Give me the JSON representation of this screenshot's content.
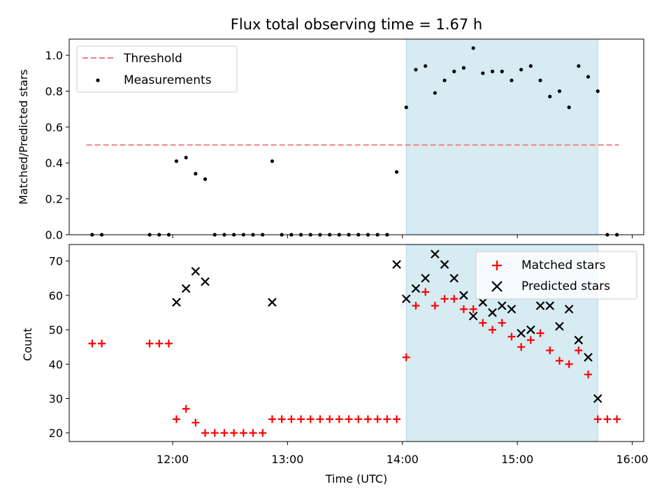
{
  "chart_data": [
    {
      "type": "scatter",
      "title": "Flux total observing time = 1.67 h",
      "ylabel": "Matched/Predicted stars",
      "xlabel": "",
      "ylim": [
        0,
        1.09
      ],
      "yticks": [
        "0.0",
        "0.2",
        "0.4",
        "0.6",
        "0.8",
        "1.0"
      ],
      "shaded_span_utc": [
        "14:02",
        "15:42"
      ],
      "shade_color": "#add8e6",
      "threshold": {
        "name": "Threshold",
        "value": 0.5,
        "color": "#f08080",
        "x_range_utc": [
          "11:15",
          "15:53"
        ]
      },
      "series": [
        {
          "name": "Measurements",
          "color": "#000000",
          "points": [
            [
              "11:18",
              0.0
            ],
            [
              "11:23",
              0.0
            ],
            [
              "11:48",
              0.0
            ],
            [
              "11:53",
              0.0
            ],
            [
              "11:58",
              0.0
            ],
            [
              "12:02",
              0.41
            ],
            [
              "12:07",
              0.43
            ],
            [
              "12:12",
              0.34
            ],
            [
              "12:17",
              0.31
            ],
            [
              "12:22",
              0.0
            ],
            [
              "12:27",
              0.0
            ],
            [
              "12:32",
              0.0
            ],
            [
              "12:37",
              0.0
            ],
            [
              "12:42",
              0.0
            ],
            [
              "12:47",
              0.0
            ],
            [
              "12:52",
              0.41
            ],
            [
              "12:57",
              0.0
            ],
            [
              "13:02",
              0.0
            ],
            [
              "13:07",
              0.0
            ],
            [
              "13:12",
              0.0
            ],
            [
              "13:17",
              0.0
            ],
            [
              "13:22",
              0.0
            ],
            [
              "13:27",
              0.0
            ],
            [
              "13:32",
              0.0
            ],
            [
              "13:37",
              0.0
            ],
            [
              "13:42",
              0.0
            ],
            [
              "13:47",
              0.0
            ],
            [
              "13:52",
              0.0
            ],
            [
              "13:57",
              0.35
            ],
            [
              "14:02",
              0.71
            ],
            [
              "14:07",
              0.92
            ],
            [
              "14:12",
              0.94
            ],
            [
              "14:17",
              0.79
            ],
            [
              "14:22",
              0.86
            ],
            [
              "14:27",
              0.91
            ],
            [
              "14:32",
              0.93
            ],
            [
              "14:37",
              1.04
            ],
            [
              "14:42",
              0.9
            ],
            [
              "14:47",
              0.91
            ],
            [
              "14:52",
              0.91
            ],
            [
              "14:57",
              0.86
            ],
            [
              "15:02",
              0.92
            ],
            [
              "15:07",
              0.94
            ],
            [
              "15:12",
              0.86
            ],
            [
              "15:17",
              0.77
            ],
            [
              "15:22",
              0.8
            ],
            [
              "15:27",
              0.71
            ],
            [
              "15:32",
              0.94
            ],
            [
              "15:37",
              0.88
            ],
            [
              "15:42",
              0.8
            ],
            [
              "15:47",
              0.0
            ],
            [
              "15:52",
              0.0
            ]
          ]
        }
      ],
      "legend": {
        "position": "upper-left",
        "entries": [
          "Threshold",
          "Measurements"
        ]
      }
    },
    {
      "type": "scatter",
      "title": "",
      "ylabel": "Count",
      "xlabel": "Time (UTC)",
      "ylim": [
        17.5,
        74.8
      ],
      "yticks": [
        "20",
        "30",
        "40",
        "50",
        "60",
        "70"
      ],
      "xlim_utc": [
        "11:06",
        "16:06"
      ],
      "xticks": [
        "12:00",
        "13:00",
        "14:00",
        "15:00",
        "16:00"
      ],
      "shaded_span_utc": [
        "14:02",
        "15:42"
      ],
      "shade_color": "#add8e6",
      "series": [
        {
          "name": "Matched stars",
          "marker": "plus",
          "color": "#ff0000",
          "points": [
            [
              "11:18",
              46
            ],
            [
              "11:23",
              46
            ],
            [
              "11:48",
              46
            ],
            [
              "11:53",
              46
            ],
            [
              "11:58",
              46
            ],
            [
              "12:02",
              24
            ],
            [
              "12:07",
              27
            ],
            [
              "12:12",
              23
            ],
            [
              "12:17",
              20
            ],
            [
              "12:22",
              20
            ],
            [
              "12:27",
              20
            ],
            [
              "12:32",
              20
            ],
            [
              "12:37",
              20
            ],
            [
              "12:42",
              20
            ],
            [
              "12:47",
              20
            ],
            [
              "12:52",
              24
            ],
            [
              "12:57",
              24
            ],
            [
              "13:02",
              24
            ],
            [
              "13:07",
              24
            ],
            [
              "13:12",
              24
            ],
            [
              "13:17",
              24
            ],
            [
              "13:22",
              24
            ],
            [
              "13:27",
              24
            ],
            [
              "13:32",
              24
            ],
            [
              "13:37",
              24
            ],
            [
              "13:42",
              24
            ],
            [
              "13:47",
              24
            ],
            [
              "13:52",
              24
            ],
            [
              "13:57",
              24
            ],
            [
              "14:02",
              42
            ],
            [
              "14:07",
              57
            ],
            [
              "14:12",
              61
            ],
            [
              "14:17",
              57
            ],
            [
              "14:22",
              59
            ],
            [
              "14:27",
              59
            ],
            [
              "14:32",
              56
            ],
            [
              "14:37",
              56
            ],
            [
              "14:42",
              52
            ],
            [
              "14:47",
              50
            ],
            [
              "14:52",
              52
            ],
            [
              "14:57",
              48
            ],
            [
              "15:02",
              45
            ],
            [
              "15:07",
              47
            ],
            [
              "15:12",
              49
            ],
            [
              "15:17",
              44
            ],
            [
              "15:22",
              41
            ],
            [
              "15:27",
              40
            ],
            [
              "15:32",
              44
            ],
            [
              "15:37",
              37
            ],
            [
              "15:42",
              24
            ],
            [
              "15:47",
              24
            ],
            [
              "15:52",
              24
            ]
          ]
        },
        {
          "name": "Predicted stars",
          "marker": "x",
          "color": "#000000",
          "points": [
            [
              "12:02",
              58
            ],
            [
              "12:07",
              62
            ],
            [
              "12:12",
              67
            ],
            [
              "12:17",
              64
            ],
            [
              "12:52",
              58
            ],
            [
              "13:57",
              69
            ],
            [
              "14:02",
              59
            ],
            [
              "14:07",
              62
            ],
            [
              "14:12",
              65
            ],
            [
              "14:17",
              72
            ],
            [
              "14:22",
              69
            ],
            [
              "14:27",
              65
            ],
            [
              "14:32",
              60
            ],
            [
              "14:37",
              54
            ],
            [
              "14:42",
              58
            ],
            [
              "14:47",
              55
            ],
            [
              "14:52",
              57
            ],
            [
              "14:57",
              56
            ],
            [
              "15:02",
              49
            ],
            [
              "15:07",
              50
            ],
            [
              "15:12",
              57
            ],
            [
              "15:17",
              57
            ],
            [
              "15:22",
              51
            ],
            [
              "15:27",
              56
            ],
            [
              "15:32",
              47
            ],
            [
              "15:37",
              42
            ],
            [
              "15:42",
              30
            ]
          ]
        }
      ],
      "legend": {
        "position": "upper-right",
        "entries": [
          "Matched stars",
          "Predicted stars"
        ]
      }
    }
  ]
}
